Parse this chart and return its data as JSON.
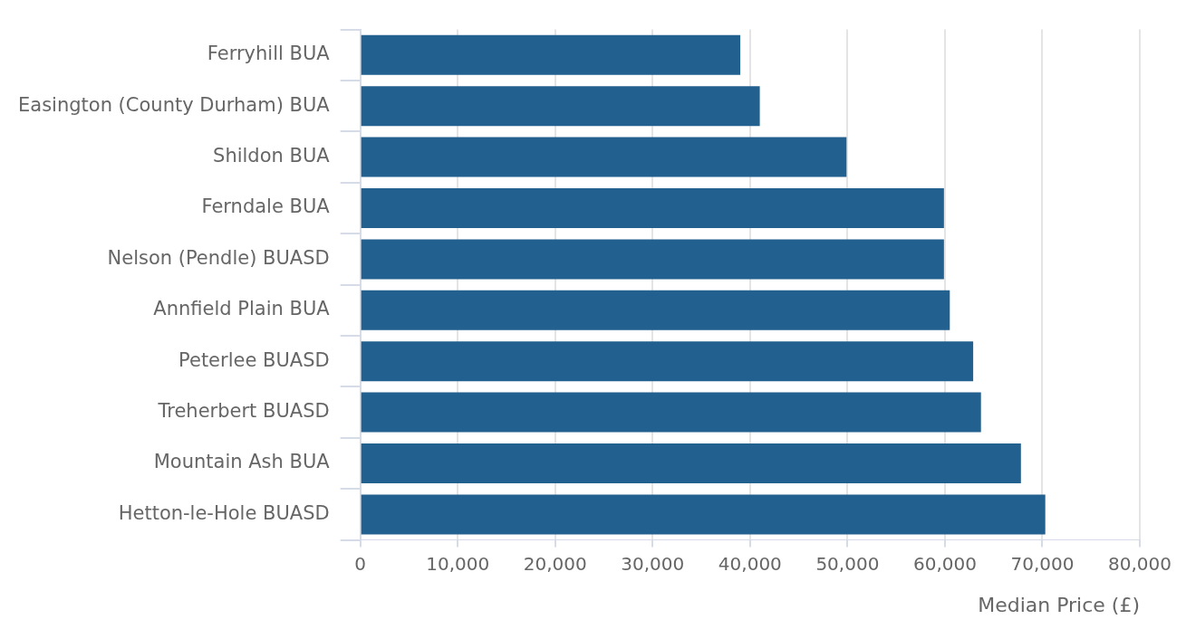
{
  "chart_data": {
    "type": "bar",
    "orientation": "horizontal",
    "xlabel": "Median Price (£)",
    "categories": [
      "Ferryhill BUA",
      "Easington (County Durham) BUA",
      "Shildon BUA",
      "Ferndale BUA",
      "Nelson (Pendle) BUASD",
      "Annfield Plain BUA",
      "Peterlee BUASD",
      "Treherbert BUASD",
      "Mountain Ash BUA",
      "Hetton-le-Hole BUASD"
    ],
    "values": [
      39000,
      41000,
      49900,
      59900,
      59900,
      60500,
      62900,
      63700,
      67800,
      70300
    ],
    "color": "#22608f",
    "xlim": [
      0,
      80000
    ],
    "xticks": [
      0,
      {
        "value": 10000,
        "label": "10,000"
      },
      {
        "value": 20000,
        "label": "20,000"
      },
      {
        "value": 30000,
        "label": "30,000"
      },
      {
        "value": 40000,
        "label": "40,000"
      },
      {
        "value": 50000,
        "label": "50,000"
      },
      {
        "value": 60000,
        "label": "60,000"
      },
      {
        "value": 70000,
        "label": "70,000"
      },
      {
        "value": 80000,
        "label": "80,000"
      }
    ],
    "grid": "x",
    "legend": false
  }
}
